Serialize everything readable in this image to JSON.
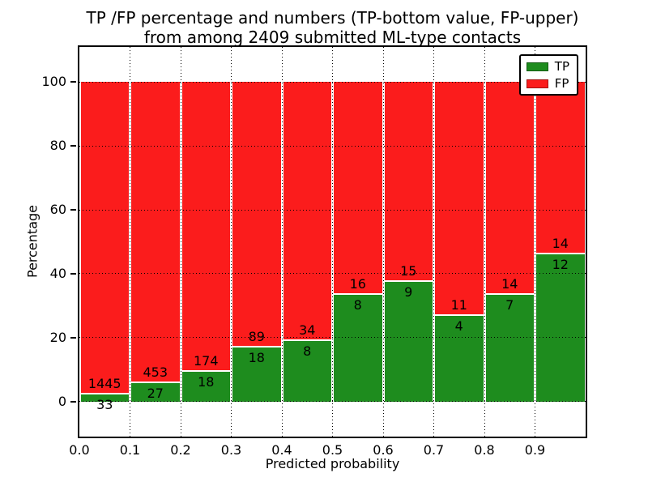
{
  "figure": {
    "title_line1": "TP /FP percentage and numbers (TP-bottom value, FP-upper)",
    "title_line2": "from among 2409 submitted ML-type contacts"
  },
  "chart_data": {
    "type": "bar",
    "stacked": true,
    "values_are": "counts per bin; bar heights are percentages TP/(TP+FP) and FP/(TP+FP), stacked to 100%",
    "title": "TP /FP percentage and numbers (TP-bottom value, FP-upper) from among 2409 submitted ML-type contacts",
    "xlabel": "Predicted probability",
    "ylabel": "Percentage",
    "total_contacts": 2409,
    "bin_starts": [
      0.0,
      0.1,
      0.2,
      0.3,
      0.4,
      0.5,
      0.6,
      0.7,
      0.8,
      0.9
    ],
    "bin_width": 0.1,
    "series": [
      {
        "name": "TP",
        "color": "#1e8c1e",
        "counts": [
          33,
          27,
          18,
          18,
          8,
          8,
          9,
          4,
          7,
          12
        ]
      },
      {
        "name": "FP",
        "color": "#fb1c1c",
        "counts": [
          1445,
          453,
          174,
          89,
          34,
          16,
          15,
          11,
          14,
          14
        ]
      }
    ],
    "xlim": [
      0.0,
      1.0
    ],
    "ylim": [
      -11,
      111
    ],
    "xtick_labels": [
      "0.0",
      "0.1",
      "0.2",
      "0.3",
      "0.4",
      "0.5",
      "0.6",
      "0.7",
      "0.8",
      "0.9"
    ],
    "xtick_positions": [
      0.0,
      0.1,
      0.2,
      0.3,
      0.4,
      0.5,
      0.6,
      0.7,
      0.8,
      0.9
    ],
    "ytick_labels": [
      "0",
      "20",
      "40",
      "60",
      "80",
      "100"
    ],
    "ytick_values": [
      0,
      20,
      40,
      60,
      80,
      100
    ],
    "grid": true,
    "grid_style": "dotted",
    "legend": {
      "position": "upper right",
      "entries": [
        {
          "label": "TP",
          "color": "#1e8c1e"
        },
        {
          "label": "FP",
          "color": "#fb1c1c"
        }
      ]
    }
  }
}
